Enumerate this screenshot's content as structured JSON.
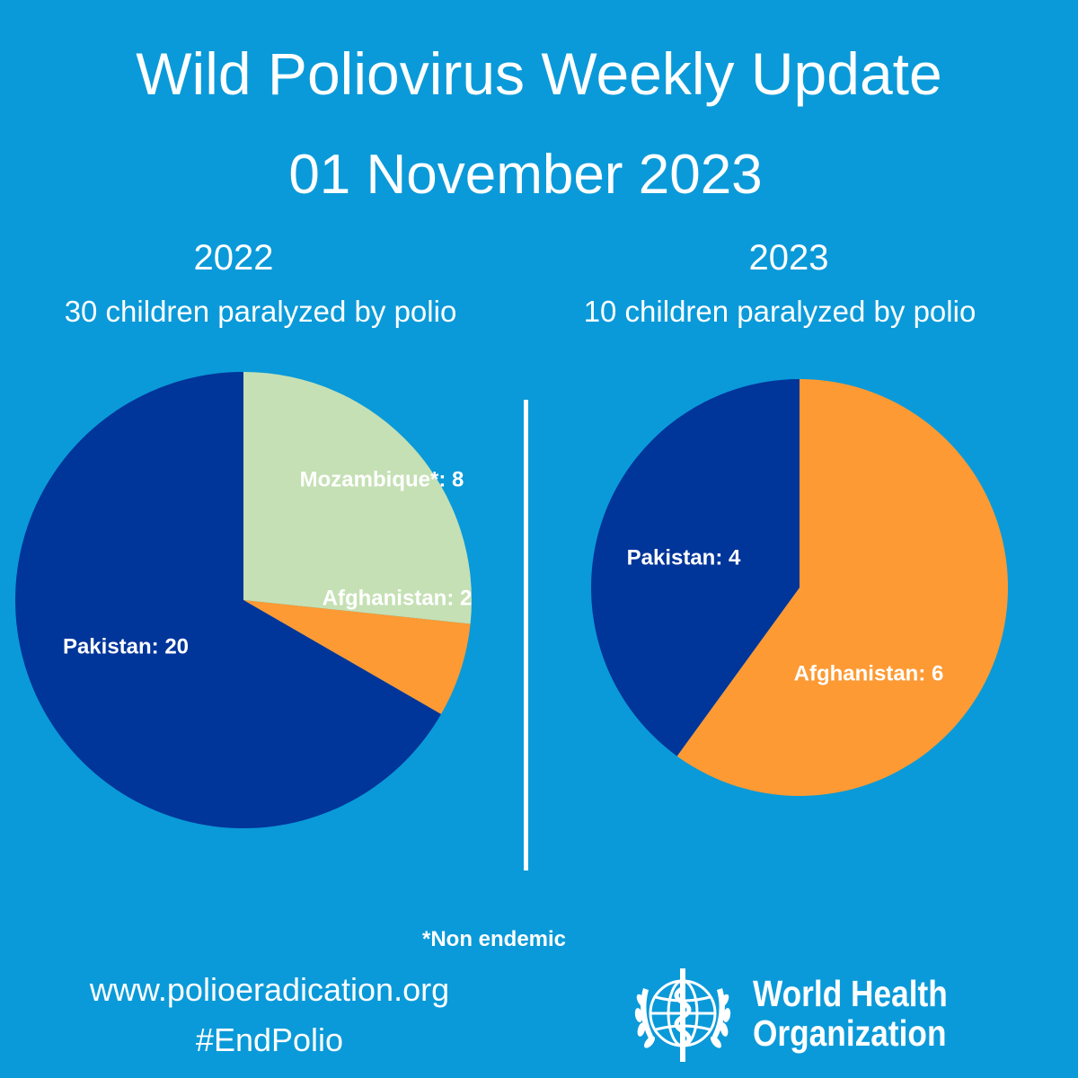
{
  "header": {
    "title": "Wild Poliovirus Weekly Update",
    "date": "01 November 2023"
  },
  "colors": {
    "background": "#0a9ad9",
    "pakistan": "#00359a",
    "afghanistan": "#fd9a33",
    "mozambique": "#c5e0b4"
  },
  "chart_data": [
    {
      "type": "pie",
      "year_label": "2022",
      "subtitle": "30 children paralyzed by polio",
      "slices": [
        {
          "label": "Mozambique*: 8",
          "category": "Mozambique*",
          "value": 8
        },
        {
          "label": "Afghanistan: 2",
          "category": "Afghanistan",
          "value": 2
        },
        {
          "label": "Pakistan: 20",
          "category": "Pakistan",
          "value": 20
        }
      ]
    },
    {
      "type": "pie",
      "year_label": "2023",
      "subtitle": "10 children paralyzed by polio",
      "slices": [
        {
          "label": "Afghanistan: 6",
          "category": "Afghanistan",
          "value": 6
        },
        {
          "label": "Pakistan: 4",
          "category": "Pakistan",
          "value": 4
        }
      ]
    }
  ],
  "footnote": "*Non endemic",
  "footer": {
    "url": "www.polioeradication.org",
    "hashtag": "#EndPolio",
    "org_line1": "World Health",
    "org_line2": "Organization",
    "logo_icon": "who-emblem-icon"
  }
}
